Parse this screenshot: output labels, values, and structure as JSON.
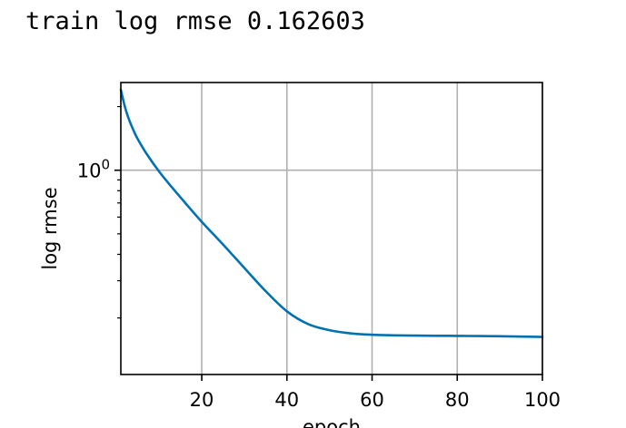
{
  "console": {
    "line": "train log rmse 0.162603"
  },
  "chart_data": {
    "type": "line",
    "title": "",
    "xlabel": "epoch",
    "ylabel": "log rmse",
    "xscale": "linear",
    "yscale": "log",
    "xlim": [
      1,
      100
    ],
    "ylim": [
      0.108,
      2.6
    ],
    "grid": true,
    "xticks": [
      20,
      40,
      60,
      80,
      100
    ],
    "yticks": [
      {
        "value": 1.0,
        "base": "10",
        "exponent": "0"
      }
    ],
    "series": [
      {
        "name": "train",
        "color": "#0072B2",
        "x": [
          1,
          2,
          3,
          4,
          5,
          7,
          10,
          13,
          16,
          20,
          25,
          30,
          35,
          40,
          45,
          50,
          55,
          60,
          65,
          70,
          75,
          80,
          85,
          90,
          95,
          100
        ],
        "y": [
          2.4,
          1.98,
          1.72,
          1.54,
          1.4,
          1.2,
          0.985,
          0.83,
          0.705,
          0.57,
          0.445,
          0.345,
          0.268,
          0.215,
          0.187,
          0.175,
          0.169,
          0.1665,
          0.1655,
          0.165,
          0.1647,
          0.1645,
          0.1642,
          0.1638,
          0.1632,
          0.1626
        ]
      }
    ]
  }
}
